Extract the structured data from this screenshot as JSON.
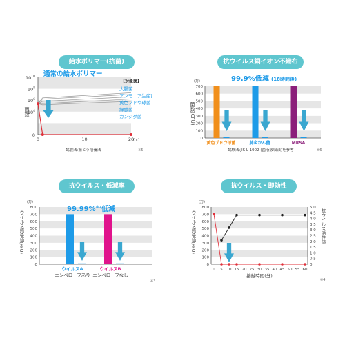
{
  "colors": {
    "teal": "#5fc6cf",
    "arrow": "#3aa7d0",
    "blue": "#1e9be8",
    "pink": "#e0138c",
    "orange": "#f18f1b",
    "purple": "#8b1f7a",
    "red": "#e0303a",
    "grid": "#e6e6e6"
  },
  "panels": [
    {
      "title": "給水ポリマー(抗菌)",
      "headline": "通常の給水ポリマー",
      "legend_title": "【対象菌】",
      "legend_items": [
        "大腸菌",
        "アンモニア生産菌",
        "黄色ブドウ球菌",
        "緑膿菌",
        "カンジダ菌"
      ],
      "ylabel": "菌数",
      "y_ticks": [
        "10",
        "10",
        "10",
        "10",
        "0"
      ],
      "y_exps": [
        "10",
        "8",
        "6",
        "4",
        ""
      ],
      "xlabel_unit": "(hr)",
      "note": "試験法:振とう培養法",
      "footnote": "※5",
      "chart_data": {
        "type": "line",
        "x": [
          0,
          1,
          20
        ],
        "x_ticks": [
          "0",
          "10",
          "20"
        ],
        "yscale": "log",
        "ylim": [
          0,
          10
        ],
        "series": [
          {
            "values": [
              5.4,
              6.4,
              7.3
            ]
          },
          {
            "values": [
              5.4,
              6.2,
              7.0
            ]
          },
          {
            "values": [
              5.4,
              5.8,
              6.6
            ]
          },
          {
            "values": [
              5.4,
              5.4,
              6.2
            ]
          },
          {
            "values": [
              5.4,
              5.2,
              5.8
            ]
          },
          {
            "values": [
              5.4,
              0,
              0
            ],
            "color": "#e0303a"
          }
        ]
      }
    },
    {
      "title": "抗ウイルス銅イオン不織布",
      "headline": "99.9%低減",
      "headline_sub": "(18時間後)",
      "unit": "(万)",
      "ylabel": "菌数(CFU)",
      "note": "試験法:JIS L 1902 (菌液吸収法)を参考",
      "footnote": "※6",
      "chart_data": {
        "type": "bar",
        "categories": [
          "黄色ブドウ球菌",
          "肺炎かん菌",
          "MRSA"
        ],
        "values": [
          700,
          700,
          700
        ],
        "after_values": [
          0.7,
          0.7,
          0.7
        ],
        "ylim": [
          0,
          700
        ],
        "y_ticks": [
          0,
          100,
          200,
          300,
          400,
          500,
          600,
          700
        ],
        "colors": [
          "#f18f1b",
          "#1e9be8",
          "#8b1f7a"
        ]
      }
    },
    {
      "title": "抗ウイルス・低減率",
      "headline": "99.99%",
      "headline_note": "※2",
      "headline_tail": "低減",
      "unit": "(万)",
      "ylabel": "ウイルス感染価(PFU)",
      "categories_line2": [
        "エンベロープあり",
        "エンベロープなし"
      ],
      "footnote": "※3",
      "chart_data": {
        "type": "bar",
        "categories": [
          "ウイルスA",
          "ウイルスB"
        ],
        "values": [
          700,
          700
        ],
        "after_values": [
          0.07,
          0.07
        ],
        "ylim": [
          0,
          800
        ],
        "y_ticks": [
          0,
          100,
          200,
          300,
          400,
          500,
          600,
          700,
          800
        ],
        "colors": [
          "#1e9be8",
          "#e0138c"
        ]
      }
    },
    {
      "title": "抗ウイルス・即効性",
      "unit": "(万)",
      "ylabel": "ウイルス感染価(PFU)",
      "y2label": "抗ウイルス活性値",
      "xlabel": "接触時間(分)",
      "footnote": "※4",
      "chart_data": {
        "type": "line",
        "x": [
          0,
          5,
          10,
          15,
          20,
          25,
          30,
          35,
          40,
          45,
          50,
          55,
          60
        ],
        "x_ticks": [
          "0",
          "5",
          "10",
          "15",
          "20",
          "25",
          "30",
          "35",
          "40",
          "45",
          "50",
          "55",
          "60"
        ],
        "ylim": [
          0,
          800
        ],
        "y_ticks": [
          0,
          100,
          200,
          300,
          400,
          500,
          600,
          700,
          800
        ],
        "y2lim": [
          0,
          5
        ],
        "y2_ticks": [
          "0",
          "0.5",
          "1.0",
          "1.5",
          "2.0",
          "2.5",
          "3.0",
          "3.5",
          "4.0",
          "4.5",
          "5.0"
        ],
        "series": [
          {
            "axis": "right",
            "x": [
              5,
              10,
              15,
              30,
              45,
              60
            ],
            "values": [
              2.1,
              3.2,
              4.3,
              4.3,
              4.3,
              4.3
            ],
            "color": "#222222"
          },
          {
            "axis": "left",
            "x": [
              0,
              5,
              10,
              15,
              30,
              45,
              60
            ],
            "values": [
              700,
              0,
              0,
              0,
              0,
              0,
              0
            ],
            "color": "#e0303a"
          }
        ]
      }
    }
  ]
}
